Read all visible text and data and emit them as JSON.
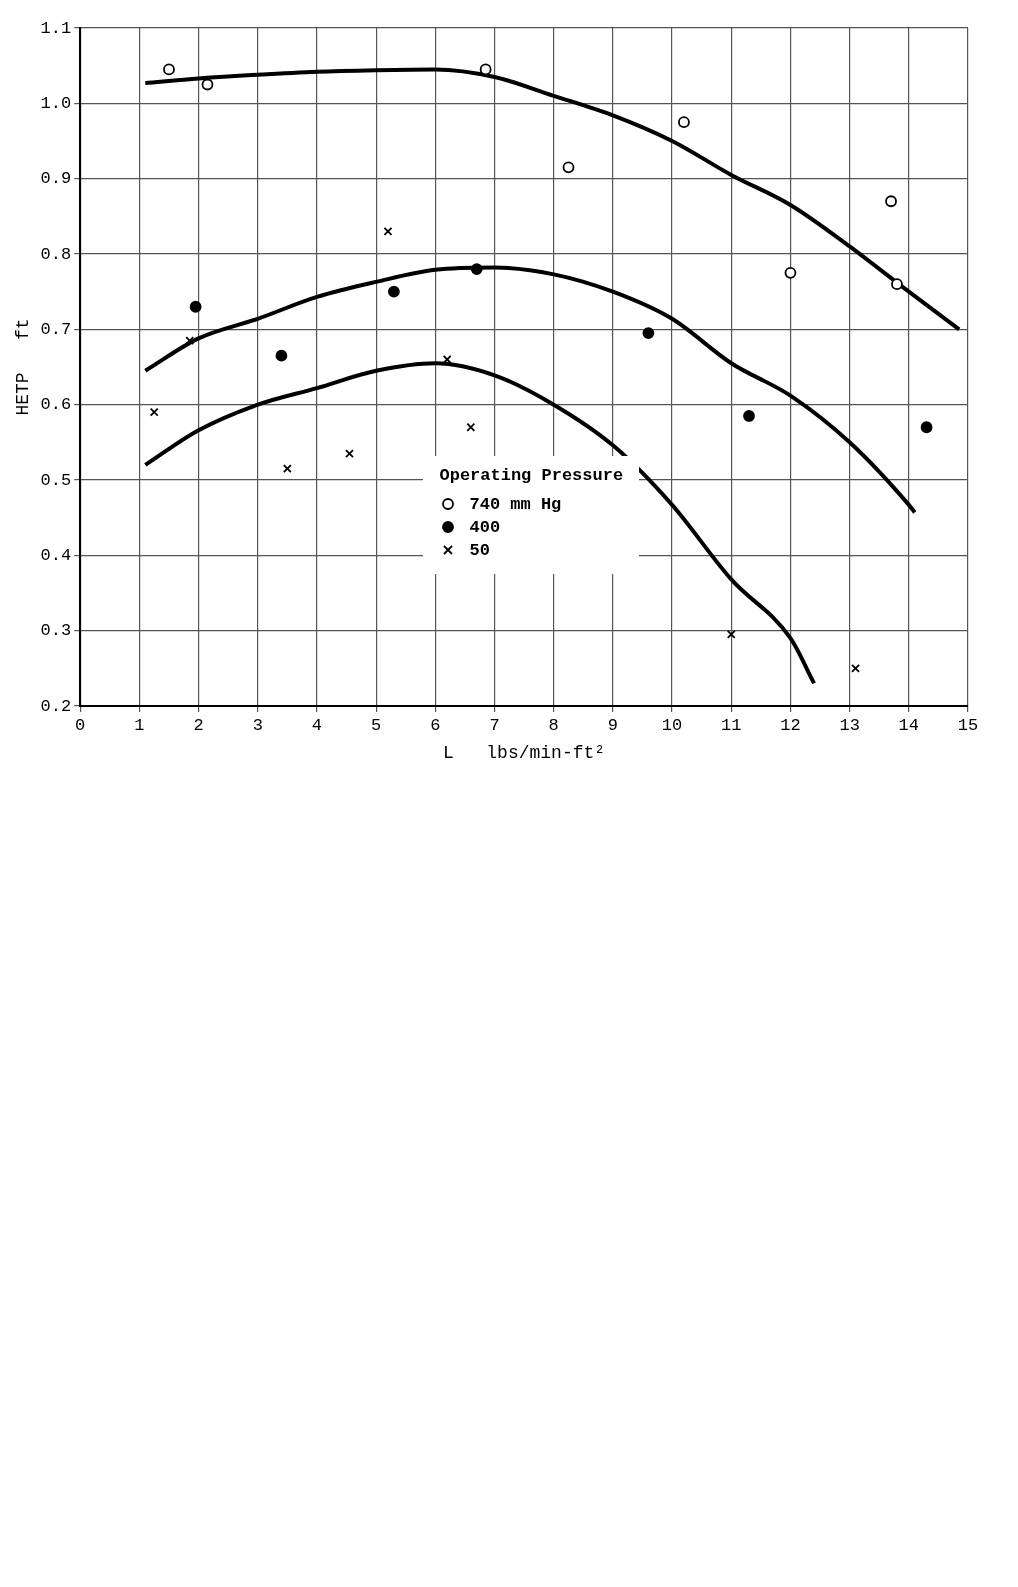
{
  "chart_data": {
    "type": "scatter",
    "xlabel": "L   lbs/min-ft²",
    "ylabel": "HETP   ft",
    "legend_title": "Operating Pressure",
    "xlim": [
      0,
      15
    ],
    "ylim": [
      0.2,
      1.1
    ],
    "xticks": [
      0,
      1,
      2,
      3,
      4,
      5,
      6,
      7,
      8,
      9,
      10,
      11,
      12,
      13,
      14,
      15
    ],
    "yticks": [
      0.2,
      0.3,
      0.4,
      0.5,
      0.6,
      0.7,
      0.8,
      0.9,
      {
        "value": 1,
        "label": "1.0"
      },
      1.1
    ],
    "grid": true,
    "legend": "bottom",
    "series": [
      {
        "name": "740 mm Hg",
        "color": "#ffffff",
        "marker": "circle",
        "x": [
          1.5,
          2.15,
          6.85,
          8.25,
          10.2,
          12.0,
          13.7,
          13.8
        ],
        "values": [
          1.045,
          1.025,
          1.045,
          0.915,
          0.975,
          0.775,
          0.87,
          0.76
        ]
      },
      {
        "name": "400",
        "color": "#000000",
        "marker": "circle",
        "x": [
          1.95,
          3.4,
          5.3,
          6.7,
          9.6,
          11.3,
          14.3
        ],
        "values": [
          0.73,
          0.665,
          0.75,
          0.78,
          0.695,
          0.585,
          0.57
        ]
      },
      {
        "name": "50",
        "color": "#000000",
        "marker": "cross",
        "x": [
          1.25,
          1.85,
          3.5,
          4.55,
          5.2,
          6.2,
          6.6,
          11.0,
          13.1
        ],
        "values": [
          0.59,
          0.685,
          0.515,
          0.535,
          0.83,
          0.66,
          0.57,
          0.295,
          0.25
        ]
      },
      {
        "type": "line",
        "color": "#000000",
        "marker": "none",
        "x": [
          1.1,
          2,
          3,
          4,
          5,
          6,
          7,
          8,
          9,
          10,
          11,
          12,
          13,
          14,
          14.85
        ],
        "values": [
          1.027,
          1.033,
          1.038,
          1.042,
          1.044,
          1.045,
          1.035,
          1.01,
          0.984,
          0.95,
          0.905,
          0.865,
          0.81,
          0.75,
          0.7
        ]
      },
      {
        "type": "line",
        "color": "#000000",
        "marker": "none",
        "x": [
          1.1,
          2,
          3,
          4,
          5,
          6,
          7,
          8,
          9,
          10,
          11,
          12,
          13,
          14,
          14.1
        ],
        "values": [
          0.645,
          0.688,
          0.714,
          0.743,
          0.763,
          0.779,
          0.782,
          0.773,
          0.75,
          0.714,
          0.655,
          0.612,
          0.55,
          0.467,
          0.457
        ]
      },
      {
        "type": "line",
        "color": "#000000",
        "marker": "none",
        "x": [
          1.1,
          2,
          3,
          4,
          5,
          6,
          7,
          8,
          9,
          10,
          11,
          12,
          12.4
        ],
        "values": [
          0.52,
          0.566,
          0.6,
          0.622,
          0.645,
          0.655,
          0.639,
          0.6,
          0.546,
          0.467,
          0.368,
          0.29,
          0.23
        ]
      }
    ]
  }
}
